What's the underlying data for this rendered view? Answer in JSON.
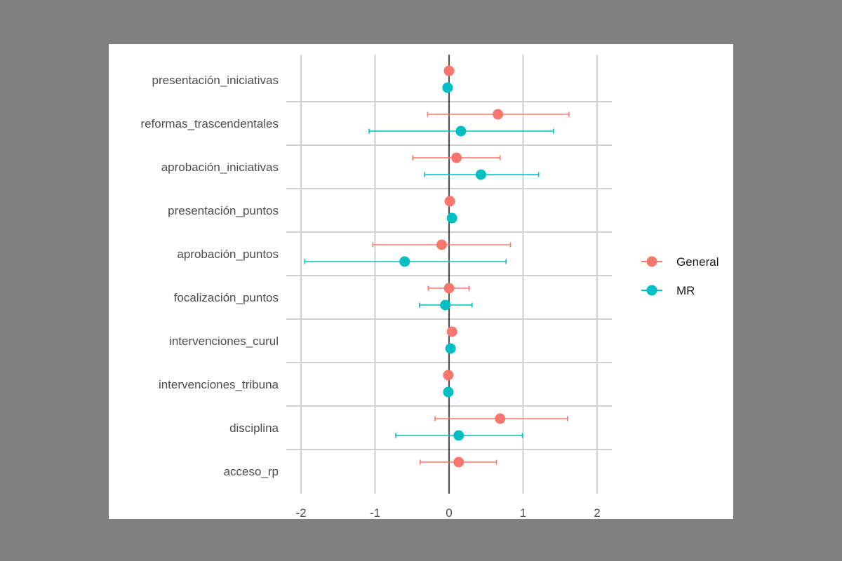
{
  "chart_data": {
    "type": "scatter",
    "title": "",
    "xlabel": "",
    "ylabel": "",
    "xlim": [
      -2.2,
      2.2
    ],
    "xticks": [
      -2,
      -1,
      0,
      1,
      2
    ],
    "xtick_labels": [
      "-2",
      "-1",
      "0",
      "1",
      "2"
    ],
    "reference_line_x": 0,
    "grid": true,
    "legend_position": "right",
    "categories": [
      "presentación_iniciativas",
      "reformas_trascendentales",
      "aprobación_iniciativas",
      "presentación_puntos",
      "aprobación_puntos",
      "focalización_puntos",
      "intervenciones_curul",
      "intervenciones_tribuna",
      "disciplina",
      "acceso_rp"
    ],
    "series": [
      {
        "name": "General",
        "color": "#F8766D",
        "estimates": [
          0.0,
          0.66,
          0.1,
          0.01,
          -0.1,
          0.0,
          0.04,
          -0.01,
          0.69,
          0.13
        ],
        "lower": [
          null,
          -0.29,
          -0.49,
          null,
          -1.03,
          -0.28,
          null,
          null,
          -0.19,
          -0.39
        ],
        "upper": [
          null,
          1.62,
          0.69,
          null,
          0.83,
          0.27,
          null,
          null,
          1.6,
          0.64
        ]
      },
      {
        "name": "MR",
        "color": "#00BFC4",
        "estimates": [
          -0.02,
          0.16,
          0.43,
          0.04,
          -0.6,
          -0.05,
          0.02,
          -0.01,
          0.13,
          null
        ],
        "lower": [
          null,
          -1.08,
          -0.33,
          null,
          -1.95,
          -0.4,
          null,
          null,
          -0.72,
          null
        ],
        "upper": [
          null,
          1.41,
          1.21,
          null,
          0.77,
          0.31,
          null,
          null,
          0.99,
          null
        ]
      }
    ]
  }
}
